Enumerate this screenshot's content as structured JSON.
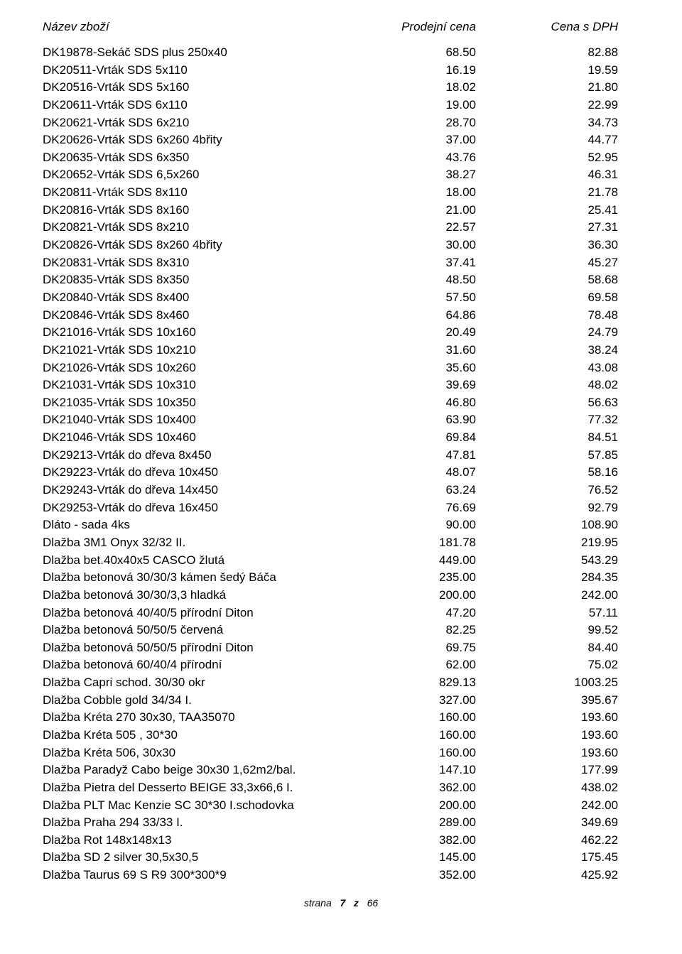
{
  "header": {
    "name": "Název zboží",
    "price": "Prodejní cena",
    "vat": "Cena s DPH"
  },
  "rows": [
    {
      "name": "DK19878-Sekáč SDS plus 250x40",
      "price": "68.50",
      "vat": "82.88"
    },
    {
      "name": "DK20511-Vrták SDS 5x110",
      "price": "16.19",
      "vat": "19.59"
    },
    {
      "name": "DK20516-Vrták SDS 5x160",
      "price": "18.02",
      "vat": "21.80"
    },
    {
      "name": "DK20611-Vrták SDS 6x110",
      "price": "19.00",
      "vat": "22.99"
    },
    {
      "name": "DK20621-Vrták SDS 6x210",
      "price": "28.70",
      "vat": "34.73"
    },
    {
      "name": "DK20626-Vrták SDS 6x260  4břity",
      "price": "37.00",
      "vat": "44.77"
    },
    {
      "name": "DK20635-Vrták SDS 6x350",
      "price": "43.76",
      "vat": "52.95"
    },
    {
      "name": "DK20652-Vrták SDS 6,5x260",
      "price": "38.27",
      "vat": "46.31"
    },
    {
      "name": "DK20811-Vrták SDS 8x110",
      "price": "18.00",
      "vat": "21.78"
    },
    {
      "name": "DK20816-Vrták SDS 8x160",
      "price": "21.00",
      "vat": "25.41"
    },
    {
      "name": "DK20821-Vrták SDS 8x210",
      "price": "22.57",
      "vat": "27.31"
    },
    {
      "name": "DK20826-Vrták SDS 8x260   4břity",
      "price": "30.00",
      "vat": "36.30"
    },
    {
      "name": "DK20831-Vrták SDS 8x310",
      "price": "37.41",
      "vat": "45.27"
    },
    {
      "name": "DK20835-Vrták SDS 8x350",
      "price": "48.50",
      "vat": "58.68"
    },
    {
      "name": "DK20840-Vrták SDS 8x400",
      "price": "57.50",
      "vat": "69.58"
    },
    {
      "name": "DK20846-Vrták SDS 8x460",
      "price": "64.86",
      "vat": "78.48"
    },
    {
      "name": "DK21016-Vrták SDS 10x160",
      "price": "20.49",
      "vat": "24.79"
    },
    {
      "name": "DK21021-Vrták SDS 10x210",
      "price": "31.60",
      "vat": "38.24"
    },
    {
      "name": "DK21026-Vrták SDS 10x260",
      "price": "35.60",
      "vat": "43.08"
    },
    {
      "name": "DK21031-Vrták SDS 10x310",
      "price": "39.69",
      "vat": "48.02"
    },
    {
      "name": "DK21035-Vrták SDS 10x350",
      "price": "46.80",
      "vat": "56.63"
    },
    {
      "name": "DK21040-Vrták SDS 10x400",
      "price": "63.90",
      "vat": "77.32"
    },
    {
      "name": "DK21046-Vrták SDS 10x460",
      "price": "69.84",
      "vat": "84.51"
    },
    {
      "name": "DK29213-Vrták do dřeva 8x450",
      "price": "47.81",
      "vat": "57.85"
    },
    {
      "name": "DK29223-Vrták do dřeva 10x450",
      "price": "48.07",
      "vat": "58.16"
    },
    {
      "name": "DK29243-Vrták do dřeva 14x450",
      "price": "63.24",
      "vat": "76.52"
    },
    {
      "name": "DK29253-Vrták do dřeva 16x450",
      "price": "76.69",
      "vat": "92.79"
    },
    {
      "name": "Dláto - sada 4ks",
      "price": "90.00",
      "vat": "108.90"
    },
    {
      "name": "Dlažba 3M1 Onyx 32/32 II.",
      "price": "181.78",
      "vat": "219.95"
    },
    {
      "name": "Dlažba bet.40x40x5 CASCO žlutá",
      "price": "449.00",
      "vat": "543.29"
    },
    {
      "name": "Dlažba betonová 30/30/3 kámen šedý Báča",
      "price": "235.00",
      "vat": "284.35"
    },
    {
      "name": "Dlažba betonová 30/30/3,3 hladká",
      "price": "200.00",
      "vat": "242.00"
    },
    {
      "name": "Dlažba betonová 40/40/5 přírodní Diton",
      "price": "47.20",
      "vat": "57.11"
    },
    {
      "name": "Dlažba betonová 50/50/5 červená",
      "price": "82.25",
      "vat": "99.52"
    },
    {
      "name": "Dlažba betonová 50/50/5 přírodní Diton",
      "price": "69.75",
      "vat": "84.40"
    },
    {
      "name": "Dlažba betonová 60/40/4 přírodní",
      "price": "62.00",
      "vat": "75.02"
    },
    {
      "name": "Dlažba Capri schod. 30/30 okr",
      "price": "829.13",
      "vat": "1003.25"
    },
    {
      "name": "Dlažba Cobble gold 34/34 I.",
      "price": "327.00",
      "vat": "395.67"
    },
    {
      "name": "Dlažba Kréta 270 30x30, TAA35070",
      "price": "160.00",
      "vat": "193.60"
    },
    {
      "name": "Dlažba Kréta 505 , 30*30",
      "price": "160.00",
      "vat": "193.60"
    },
    {
      "name": "Dlažba Kréta 506, 30x30",
      "price": "160.00",
      "vat": "193.60"
    },
    {
      "name": "Dlažba Paradyž Cabo beige 30x30 1,62m2/bal.",
      "price": "147.10",
      "vat": "177.99"
    },
    {
      "name": "Dlažba Pietra del Desserto BEIGE 33,3x66,6 I.",
      "price": "362.00",
      "vat": "438.02"
    },
    {
      "name": "Dlažba PLT Mac Kenzie SC 30*30 I.schodovka",
      "price": "200.00",
      "vat": "242.00"
    },
    {
      "name": "Dlažba Praha 294 33/33 I.",
      "price": "289.00",
      "vat": "349.69"
    },
    {
      "name": "Dlažba Rot 148x148x13",
      "price": "382.00",
      "vat": "462.22"
    },
    {
      "name": "Dlažba SD 2 silver 30,5x30,5",
      "price": "145.00",
      "vat": "175.45"
    },
    {
      "name": "Dlažba Taurus 69 S R9 300*300*9",
      "price": "352.00",
      "vat": "425.92"
    }
  ],
  "footer": {
    "label": "strana",
    "page": "7",
    "sep": "z",
    "total": "66"
  }
}
